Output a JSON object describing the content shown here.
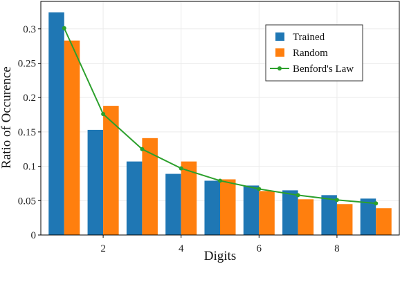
{
  "chart_data": {
    "type": "bar",
    "xlabel": "Digits",
    "ylabel": "Ratio of Occurence",
    "x": [
      1,
      2,
      3,
      4,
      5,
      6,
      7,
      8,
      9
    ],
    "xlim": [
      0.4,
      9.6
    ],
    "ylim": [
      0,
      0.34
    ],
    "xticks": [
      2,
      4,
      6,
      8
    ],
    "xtick_labels": [
      "2",
      "4",
      "6",
      "8"
    ],
    "yticks": [
      0,
      0.05,
      0.1,
      0.15,
      0.2,
      0.25,
      0.3
    ],
    "ytick_labels": [
      "0",
      "0.05",
      "0.1",
      "0.15",
      "0.2",
      "0.25",
      "0.3"
    ],
    "grid": true,
    "legend_position": "top-right",
    "series": [
      {
        "name": "Trained",
        "kind": "bar",
        "color": "#1f77b4",
        "values": [
          0.324,
          0.153,
          0.107,
          0.089,
          0.079,
          0.072,
          0.065,
          0.058,
          0.053
        ]
      },
      {
        "name": "Random",
        "kind": "bar",
        "color": "#ff7f0e",
        "values": [
          0.283,
          0.188,
          0.141,
          0.107,
          0.081,
          0.064,
          0.052,
          0.045,
          0.039
        ]
      },
      {
        "name": "Benford's Law",
        "kind": "line",
        "color": "#2ca02c",
        "values": [
          0.301,
          0.176,
          0.125,
          0.097,
          0.079,
          0.067,
          0.058,
          0.051,
          0.046
        ]
      }
    ]
  }
}
